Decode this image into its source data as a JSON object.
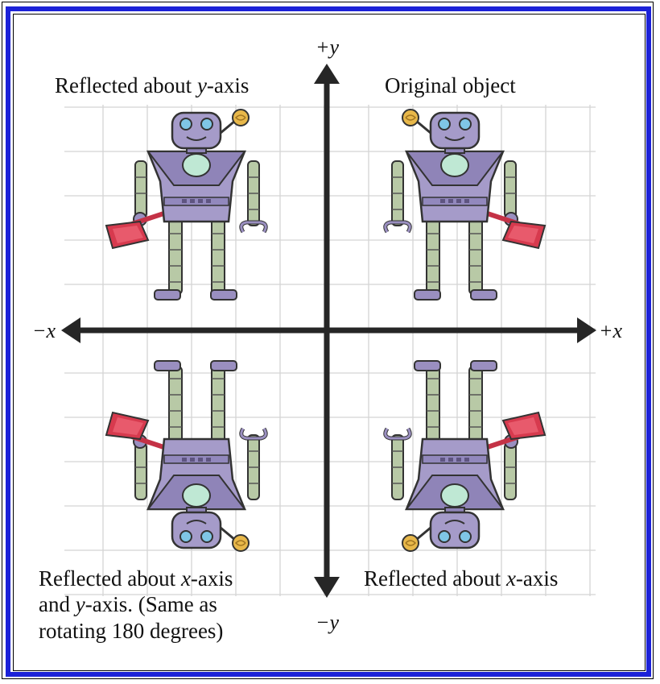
{
  "axes": {
    "pos_y": "+y",
    "neg_y": "−y",
    "pos_x": "+x",
    "neg_x": "−x"
  },
  "quadrants": {
    "top_left": {
      "pre": "Reflected about ",
      "var": "y",
      "post": "-axis"
    },
    "top_right": {
      "text": "Original object"
    },
    "bottom_right": {
      "pre": "Reflected about ",
      "var": "x",
      "post": "-axis"
    },
    "bottom_left": {
      "line1_pre": "Reflected about ",
      "line1_var": "x",
      "line1_post": "-axis",
      "line2_pre": "and ",
      "line2_var": "y",
      "line2_post": "-axis.  (Same as",
      "line3": "rotating 180 degrees)"
    }
  },
  "colors": {
    "frame_blue": "#1c22d8",
    "grid": "#d4d4d4",
    "axis": "#262626",
    "robot_body": "#a59bc9",
    "robot_dark": "#5e5480",
    "robot_limb": "#b8c9a6",
    "robot_chest": "#bfe8d4",
    "robot_eye": "#7fc6e6",
    "dustpan": "#d73a4e",
    "ball": "#e8b84a"
  },
  "icons": [
    "robot-figure",
    "dustpan-icon",
    "antenna-ball-icon"
  ]
}
